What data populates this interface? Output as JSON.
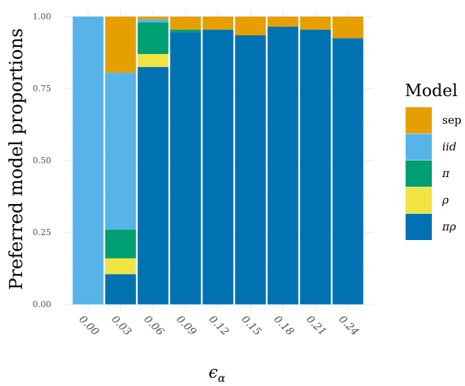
{
  "chart_data": {
    "type": "bar",
    "stacked": true,
    "ylabel": "Preferred model proportions",
    "xlabel": "ϵ_α",
    "ylim": [
      0,
      1
    ],
    "yticks": [
      "0.00",
      "0.25",
      "0.50",
      "0.75",
      "1.00"
    ],
    "categories": [
      "0.00",
      "0.03",
      "0.06",
      "0.09",
      "0.12",
      "0.15",
      "0.18",
      "0.21",
      "0.24"
    ],
    "legend": {
      "title": "Model",
      "position": "right"
    },
    "grid": true,
    "series": [
      {
        "name": "πρ",
        "color": "#0072B2",
        "values": [
          0.0,
          0.105,
          0.825,
          0.945,
          0.955,
          0.935,
          0.965,
          0.955,
          0.925
        ]
      },
      {
        "name": "ρ",
        "color": "#F0E442",
        "values": [
          0.0,
          0.055,
          0.045,
          0.0,
          0.0,
          0.0,
          0.0,
          0.0,
          0.0
        ]
      },
      {
        "name": "π",
        "color": "#009E73",
        "values": [
          0.0,
          0.1,
          0.11,
          0.01,
          0.0,
          0.0,
          0.0,
          0.0,
          0.0
        ]
      },
      {
        "name": "iid",
        "color": "#56B4E9",
        "values": [
          1.0,
          0.545,
          0.01,
          0.0,
          0.0,
          0.0,
          0.0,
          0.0,
          0.0
        ]
      },
      {
        "name": "sep",
        "color": "#E69F00",
        "values": [
          0.0,
          0.195,
          0.01,
          0.045,
          0.045,
          0.065,
          0.035,
          0.045,
          0.075
        ]
      }
    ],
    "legend_order": [
      "sep",
      "iid",
      "π",
      "ρ",
      "πρ"
    ],
    "legend_italic": [
      false,
      true,
      true,
      true,
      true
    ]
  }
}
